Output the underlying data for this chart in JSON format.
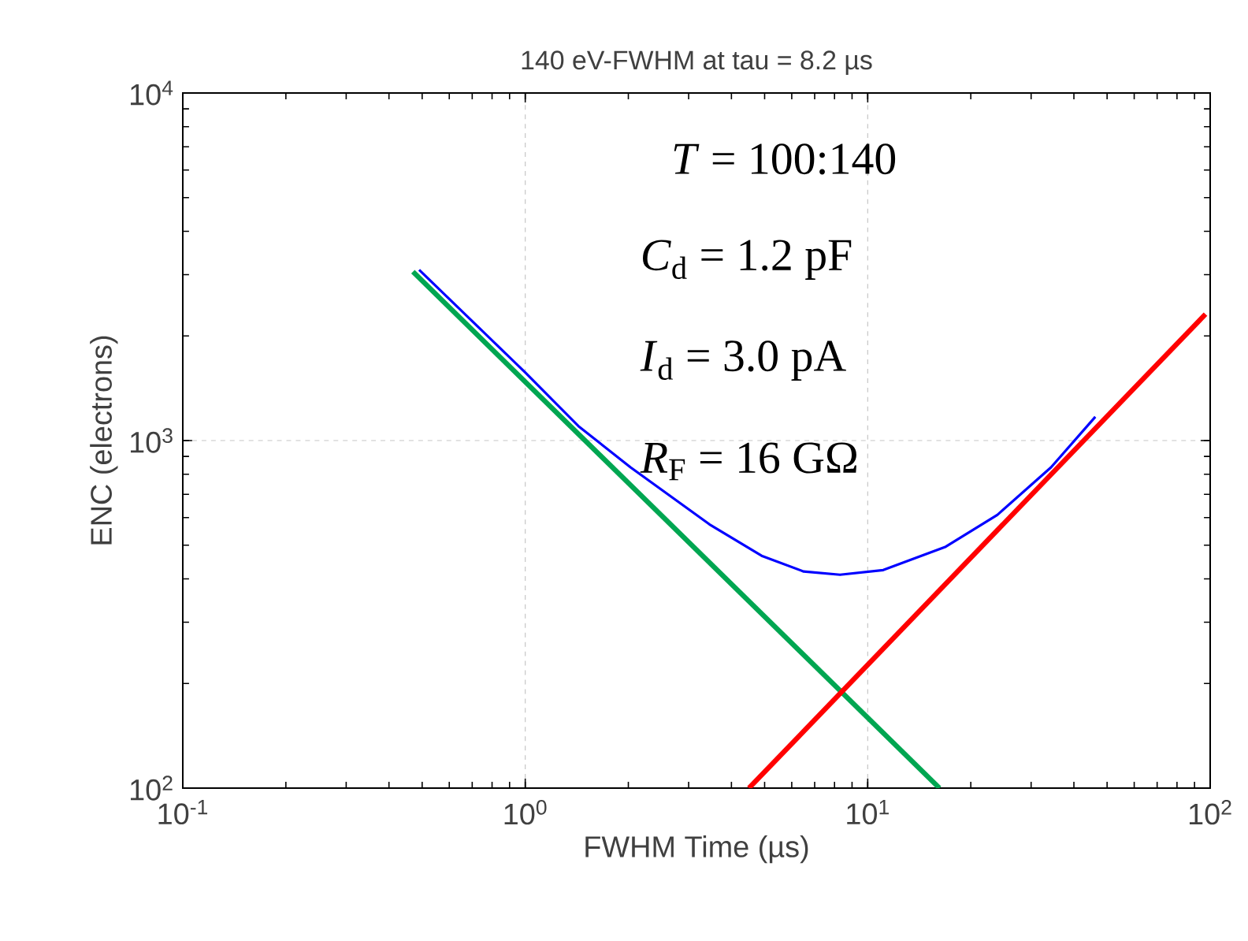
{
  "chart_data": {
    "type": "line",
    "title": "140 eV-FWHM at tau = 8.2 µs",
    "xlabel": "FWHM Time (µs)",
    "ylabel": "ENC (electrons)",
    "log": "xy",
    "grid": true,
    "marker": "none",
    "line_style": "solid",
    "xlim": [
      0.1,
      100
    ],
    "ylim": [
      100,
      10000
    ],
    "xticks": [
      {
        "value": 0.1,
        "label": "10$^{-1}$"
      },
      {
        "value": 1,
        "label": "10$^{0}$"
      },
      {
        "value": 10,
        "label": "10$^{1}$"
      },
      {
        "value": 100,
        "label": "10$^{2}$"
      }
    ],
    "yticks": [
      {
        "value": 100,
        "label": "10$^{2}$"
      },
      {
        "value": 1000,
        "label": "10$^{3}$"
      },
      {
        "value": 10000,
        "label": "10$^{4}$"
      }
    ],
    "annotations": [
      "*T* = 100:140",
      "*C*$_{d}$ = 1.2 pF",
      "*I*$_{d}$ = 3.0 pA",
      "*R*$_{F}$ = 16 GΩ"
    ],
    "series": [
      {
        "color": "#0000ff",
        "x": [
          0.49,
          1.0,
          1.43,
          2.03,
          3.45,
          4.9,
          6.5,
          8.3,
          11.1,
          16.9,
          23.9,
          34.3,
          46.2
        ],
        "values": [
          3100,
          1570,
          1100,
          837,
          574,
          466,
          420,
          411,
          424,
          495,
          611,
          837,
          1170
        ]
      },
      {
        "color": "#00a651",
        "x": [
          0.47,
          16.2
        ],
        "values": [
          3060,
          100
        ]
      },
      {
        "color": "#ff0000",
        "x": [
          4.5,
          96.9
        ],
        "values": [
          100,
          2310
        ]
      }
    ]
  }
}
